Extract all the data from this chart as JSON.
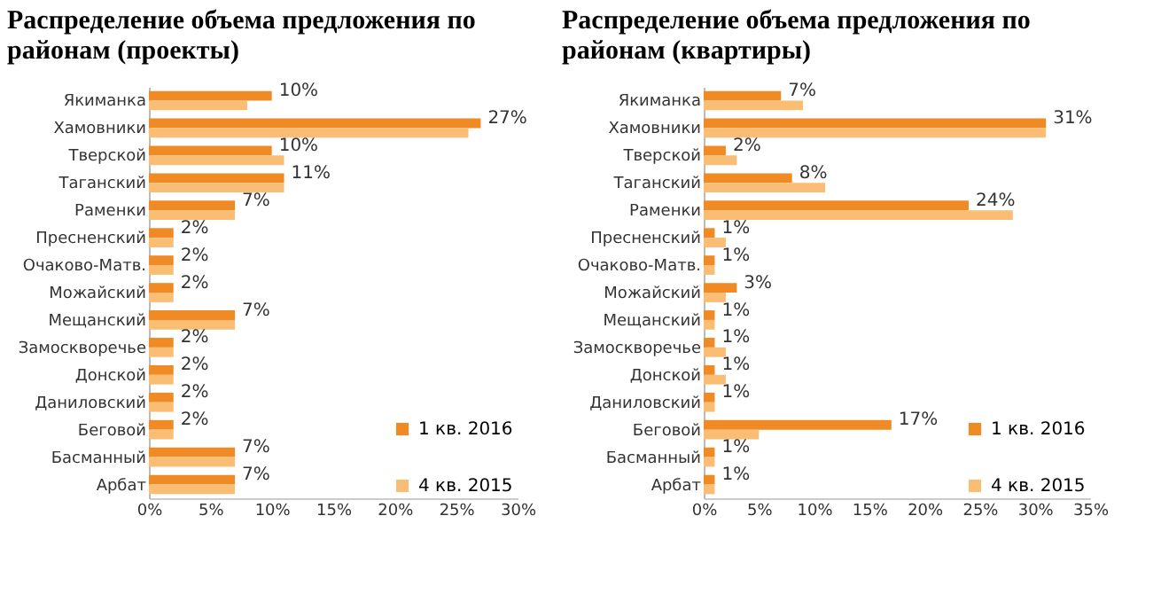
{
  "chart_data": [
    {
      "type": "bar",
      "orientation": "horizontal",
      "title": "Распределение объема предложения по районам (проекты)",
      "categories": [
        "Якиманка",
        "Хамовники",
        "Тверской",
        "Таганский",
        "Раменки",
        "Пресненский",
        "Очаково-Матв.",
        "Можайский",
        "Мещанский",
        "Замоскворечье",
        "Донской",
        "Даниловский",
        "Беговой",
        "Басманный",
        "Арбат"
      ],
      "series": [
        {
          "name": "1 кв. 2016",
          "color": "#f08a24",
          "values": [
            10,
            27,
            10,
            11,
            7,
            2,
            2,
            2,
            7,
            2,
            2,
            2,
            2,
            7,
            7
          ],
          "value_labels": [
            "10%",
            "27%",
            "10%",
            "11%",
            "7%",
            "2%",
            "2%",
            "2%",
            "7%",
            "2%",
            "2%",
            "2%",
            "2%",
            "7%",
            "7%"
          ]
        },
        {
          "name": "4 кв. 2015",
          "color": "#f9bd74",
          "values": [
            8,
            26,
            11,
            11,
            7,
            2,
            2,
            2,
            7,
            2,
            2,
            2,
            2,
            7,
            7
          ]
        }
      ],
      "xlim": [
        0,
        30
      ],
      "xticks": [
        {
          "value": 0,
          "label": "0%"
        },
        {
          "value": 5,
          "label": "5%"
        },
        {
          "value": 10,
          "label": "10%"
        },
        {
          "value": 15,
          "label": "15%"
        },
        {
          "value": 20,
          "label": "20%"
        },
        {
          "value": 25,
          "label": "25%"
        },
        {
          "value": 30,
          "label": "30%"
        }
      ],
      "grid": false,
      "legend": "bottom right"
    },
    {
      "type": "bar",
      "orientation": "horizontal",
      "title": "Распределение объема предложения по районам (квартиры)",
      "categories": [
        "Якиманка",
        "Хамовники",
        "Тверской",
        "Таганский",
        "Раменки",
        "Пресненский",
        "Очаково-Матв.",
        "Можайский",
        "Мещанский",
        "Замоскворечье",
        "Донской",
        "Даниловский",
        "Беговой",
        "Басманный",
        "Арбат"
      ],
      "series": [
        {
          "name": "1 кв. 2016",
          "color": "#f08a24",
          "values": [
            7,
            31,
            2,
            8,
            24,
            1,
            1,
            3,
            1,
            1,
            1,
            1,
            17,
            1,
            1
          ],
          "value_labels": [
            "7%",
            "31%",
            "2%",
            "8%",
            "24%",
            "1%",
            "1%",
            "3%",
            "1%",
            "1%",
            "1%",
            "1%",
            "17%",
            "1%",
            "1%"
          ]
        },
        {
          "name": "4 кв. 2015",
          "color": "#f9bd74",
          "values": [
            9,
            31,
            3,
            11,
            28,
            2,
            1,
            2,
            1,
            2,
            2,
            1,
            5,
            1,
            1
          ]
        }
      ],
      "xlim": [
        0,
        35
      ],
      "xticks": [
        {
          "value": 0,
          "label": "0%"
        },
        {
          "value": 5,
          "label": "5%"
        },
        {
          "value": 10,
          "label": "10%"
        },
        {
          "value": 15,
          "label": "15%"
        },
        {
          "value": 20,
          "label": "20%"
        },
        {
          "value": 25,
          "label": "25%"
        },
        {
          "value": 30,
          "label": "30%"
        },
        {
          "value": 35,
          "label": "35%"
        }
      ],
      "grid": false,
      "legend": "bottom right"
    }
  ]
}
